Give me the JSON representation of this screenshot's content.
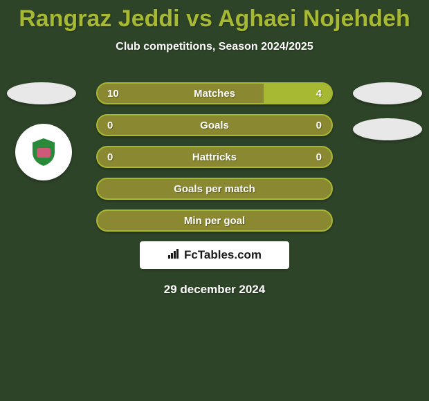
{
  "colors": {
    "background": "#2e4428",
    "title": "#a7b832",
    "subtitle_text": "#ffffff",
    "bar_bg": "#8a8830",
    "bar_highlight": "#a7b832",
    "bar_border": "#b8c845",
    "bar_outline": "#a7b832",
    "bar_text": "#ffffff",
    "ellipse": "#e8e8e8",
    "logo_bg": "#ffffff",
    "logo_shield_green": "#2a8a3a",
    "logo_shield_pink": "#d05878",
    "brand_bg": "#ffffff",
    "brand_text": "#1a1a1a",
    "date_text": "#ffffff"
  },
  "typography": {
    "title_size": 34,
    "subtitle_size": 16,
    "bar_label_size": 15,
    "date_size": 17
  },
  "header": {
    "title": "Rangraz Jeddi vs Aghaei Nojehdeh",
    "subtitle": "Club competitions, Season 2024/2025"
  },
  "stats": [
    {
      "label": "Matches",
      "left_val": "10",
      "right_val": "4",
      "left_pct": 71,
      "right_pct": 29,
      "show_fills": true
    },
    {
      "label": "Goals",
      "left_val": "0",
      "right_val": "0",
      "left_pct": 0,
      "right_pct": 0,
      "show_fills": false
    },
    {
      "label": "Hattricks",
      "left_val": "0",
      "right_val": "0",
      "left_pct": 0,
      "right_pct": 0,
      "show_fills": false
    },
    {
      "label": "Goals per match",
      "left_val": "",
      "right_val": "",
      "left_pct": 0,
      "right_pct": 0,
      "show_fills": false
    },
    {
      "label": "Min per goal",
      "left_val": "",
      "right_val": "",
      "left_pct": 0,
      "right_pct": 0,
      "show_fills": false
    }
  ],
  "brand": {
    "text": "FcTables.com"
  },
  "date": "29 december 2024"
}
